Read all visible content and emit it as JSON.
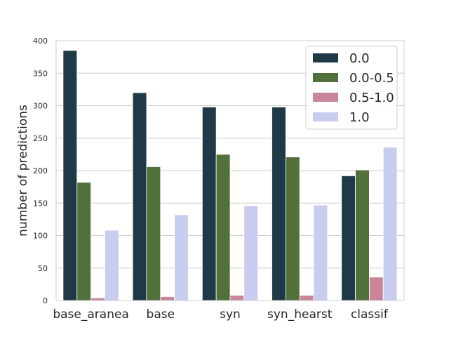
{
  "chart_data": {
    "type": "bar",
    "categories": [
      "base_aranea",
      "base",
      "syn",
      "syn_hearst",
      "classif"
    ],
    "series": [
      {
        "name": "0.0",
        "color": "#1f3a46",
        "values": [
          385,
          320,
          298,
          298,
          192
        ]
      },
      {
        "name": "0.0-0.5",
        "color": "#52703a",
        "values": [
          182,
          206,
          225,
          221,
          201
        ]
      },
      {
        "name": "0.5-1.0",
        "color": "#c9869a",
        "values": [
          4,
          6,
          8,
          8,
          36
        ]
      },
      {
        "name": "1.0",
        "color": "#c8cdef",
        "values": [
          108,
          132,
          146,
          147,
          236
        ]
      }
    ],
    "ylabel": "number of predictions",
    "xlabel": "",
    "ylim": [
      0,
      400
    ],
    "yticks": [
      "0",
      "50",
      "100",
      "150",
      "200",
      "250",
      "300",
      "350",
      "400"
    ],
    "grid": "horizontal",
    "legend_position": "top-right"
  }
}
